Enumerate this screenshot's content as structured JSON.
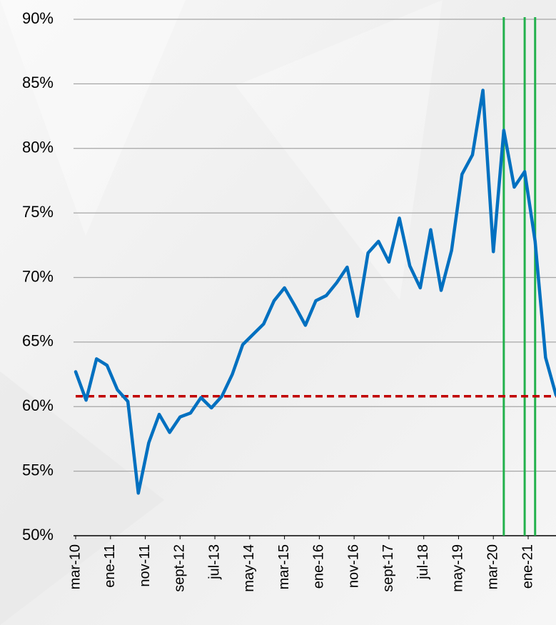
{
  "chart_data": {
    "type": "line",
    "x": [
      "2010-03",
      "2010-06",
      "2010-09",
      "2010-12",
      "2011-03",
      "2011-06",
      "2011-09",
      "2011-12",
      "2012-03",
      "2012-06",
      "2012-09",
      "2012-12",
      "2013-03",
      "2013-06",
      "2013-09",
      "2013-12",
      "2014-03",
      "2014-06",
      "2014-09",
      "2014-12",
      "2015-03",
      "2015-06",
      "2015-09",
      "2015-12",
      "2016-03",
      "2016-06",
      "2016-09",
      "2016-12",
      "2017-03",
      "2017-06",
      "2017-09",
      "2017-12",
      "2018-03",
      "2018-06",
      "2018-09",
      "2018-12",
      "2019-03",
      "2019-06",
      "2019-09",
      "2019-12",
      "2020-03",
      "2020-06",
      "2020-09",
      "2020-12",
      "2021-03",
      "2021-06",
      "2021-09"
    ],
    "series": [
      {
        "color": "#0070c0",
        "values": [
          62.7,
          60.5,
          63.7,
          63.2,
          61.3,
          60.4,
          53.3,
          57.2,
          59.4,
          58.0,
          59.2,
          59.5,
          60.7,
          59.9,
          60.8,
          62.5,
          64.8,
          65.6,
          66.4,
          68.2,
          69.2,
          67.8,
          66.3,
          68.2,
          68.6,
          69.6,
          70.8,
          67.0,
          71.9,
          72.8,
          71.2,
          74.6,
          70.9,
          69.2,
          73.7,
          69.0,
          72.1,
          78.0,
          79.5,
          84.5,
          72.0,
          81.4,
          77.0,
          78.2,
          72.8,
          63.8,
          60.9
        ]
      }
    ],
    "xlim": [
      "2010-03",
      "2021-09"
    ],
    "xticks": [
      {
        "value": "2010-03",
        "label": "mar-10"
      },
      {
        "value": "2011-01",
        "label": "ene-11"
      },
      {
        "value": "2011-11",
        "label": "nov-11"
      },
      {
        "value": "2012-09",
        "label": "sept-12"
      },
      {
        "value": "2013-07",
        "label": "jul-13"
      },
      {
        "value": "2014-05",
        "label": "may-14"
      },
      {
        "value": "2015-03",
        "label": "mar-15"
      },
      {
        "value": "2016-01",
        "label": "ene-16"
      },
      {
        "value": "2016-11",
        "label": "nov-16"
      },
      {
        "value": "2017-09",
        "label": "sept-17"
      },
      {
        "value": "2018-07",
        "label": "jul-18"
      },
      {
        "value": "2019-05",
        "label": "may-19"
      },
      {
        "value": "2020-03",
        "label": "mar-20"
      },
      {
        "value": "2021-01",
        "label": "ene-21"
      }
    ],
    "ylim": [
      50,
      90
    ],
    "yticks": [
      {
        "value": 50,
        "label": "50%"
      },
      {
        "value": 55,
        "label": "55%"
      },
      {
        "value": 60,
        "label": "60%"
      },
      {
        "value": 65,
        "label": "65%"
      },
      {
        "value": 70,
        "label": "70%"
      },
      {
        "value": 75,
        "label": "75%"
      },
      {
        "value": 80,
        "label": "80%"
      },
      {
        "value": 85,
        "label": "85%"
      },
      {
        "value": 90,
        "label": "90%"
      }
    ],
    "grid": true,
    "reference_line": {
      "value": 60.8,
      "color": "#c00000"
    },
    "vertical_lines": {
      "x": [
        "2020-06",
        "2020-12",
        "2021-03"
      ],
      "color": "#22b14c"
    }
  }
}
